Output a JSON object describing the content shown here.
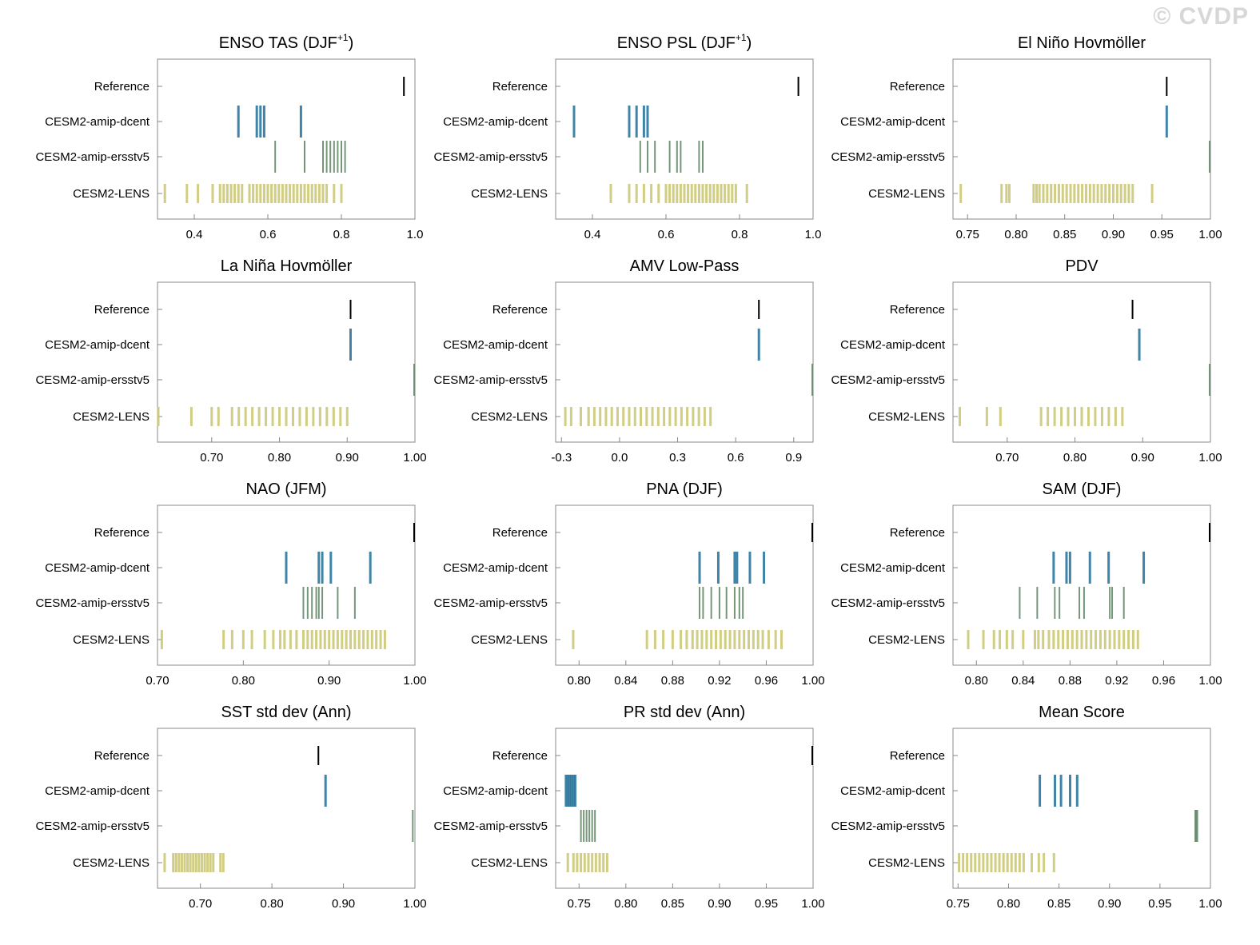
{
  "watermark": "© CVDP",
  "row_labels": [
    "Reference",
    "CESM2-amip-dcent",
    "CESM2-amip-ersstv5",
    "CESM2-LENS"
  ],
  "colors": {
    "Reference": "#000000",
    "CESM2-amip-dcent": "#1f6f98",
    "CESM2-amip-ersstv5": "#5e8463",
    "CESM2-LENS": "#c9c56e"
  },
  "chart_data": [
    {
      "type": "scatter",
      "title": "ENSO TAS (DJF",
      "title_sup": "+1",
      "title_end": ")",
      "xlim": [
        0.3,
        1.0
      ],
      "xticks": [
        0.4,
        0.6,
        0.8,
        1.0
      ],
      "xticklabels": [
        "0.4",
        "0.6",
        "0.8",
        "1.0"
      ],
      "series": [
        {
          "name": "Reference",
          "values": [
            0.97
          ]
        },
        {
          "name": "CESM2-amip-dcent",
          "values": [
            0.52,
            0.57,
            0.58,
            0.59,
            0.69
          ]
        },
        {
          "name": "CESM2-amip-ersstv5",
          "values": [
            0.62,
            0.7,
            0.75,
            0.76,
            0.77,
            0.78,
            0.79,
            0.8,
            0.81
          ]
        },
        {
          "name": "CESM2-LENS",
          "values": [
            0.32,
            0.38,
            0.41,
            0.45,
            0.47,
            0.48,
            0.49,
            0.5,
            0.51,
            0.52,
            0.53,
            0.55,
            0.56,
            0.57,
            0.58,
            0.59,
            0.6,
            0.61,
            0.62,
            0.63,
            0.64,
            0.65,
            0.66,
            0.67,
            0.68,
            0.69,
            0.7,
            0.71,
            0.72,
            0.73,
            0.74,
            0.75,
            0.76,
            0.78,
            0.8
          ]
        }
      ]
    },
    {
      "type": "scatter",
      "title": "ENSO PSL (DJF",
      "title_sup": "+1",
      "title_end": ")",
      "xlim": [
        0.3,
        1.0
      ],
      "xticks": [
        0.4,
        0.6,
        0.8,
        1.0
      ],
      "xticklabels": [
        "0.4",
        "0.6",
        "0.8",
        "1.0"
      ],
      "series": [
        {
          "name": "Reference",
          "values": [
            0.96
          ]
        },
        {
          "name": "CESM2-amip-dcent",
          "values": [
            0.35,
            0.5,
            0.52,
            0.54,
            0.55
          ]
        },
        {
          "name": "CESM2-amip-ersstv5",
          "values": [
            0.53,
            0.55,
            0.57,
            0.61,
            0.63,
            0.64,
            0.69,
            0.7
          ]
        },
        {
          "name": "CESM2-LENS",
          "values": [
            0.45,
            0.5,
            0.52,
            0.54,
            0.56,
            0.58,
            0.6,
            0.61,
            0.62,
            0.63,
            0.64,
            0.65,
            0.66,
            0.67,
            0.68,
            0.69,
            0.7,
            0.71,
            0.72,
            0.73,
            0.74,
            0.75,
            0.76,
            0.77,
            0.78,
            0.79,
            0.82
          ]
        }
      ]
    },
    {
      "type": "scatter",
      "title": "El Niño Hovmöller",
      "xlim": [
        0.735,
        1.0
      ],
      "xticks": [
        0.75,
        0.8,
        0.85,
        0.9,
        0.95,
        1.0
      ],
      "xticklabels": [
        "0.75",
        "0.80",
        "0.85",
        "0.90",
        "0.95",
        "1.00"
      ],
      "series": [
        {
          "name": "Reference",
          "values": [
            0.955
          ]
        },
        {
          "name": "CESM2-amip-dcent",
          "values": [
            0.955
          ]
        },
        {
          "name": "CESM2-amip-ersstv5",
          "values": [
            1.0
          ]
        },
        {
          "name": "CESM2-LENS",
          "values": [
            0.743,
            0.785,
            0.79,
            0.793,
            0.818,
            0.821,
            0.824,
            0.828,
            0.832,
            0.836,
            0.84,
            0.844,
            0.848,
            0.852,
            0.856,
            0.86,
            0.864,
            0.868,
            0.872,
            0.876,
            0.88,
            0.884,
            0.888,
            0.892,
            0.896,
            0.9,
            0.904,
            0.908,
            0.912,
            0.916,
            0.92,
            0.94
          ]
        }
      ]
    },
    {
      "type": "scatter",
      "title": "La Niña Hovmöller",
      "xlim": [
        0.62,
        1.0
      ],
      "xticks": [
        0.7,
        0.8,
        0.9,
        1.0
      ],
      "xticklabels": [
        "0.70",
        "0.80",
        "0.90",
        "1.00"
      ],
      "series": [
        {
          "name": "Reference",
          "values": [
            0.905
          ]
        },
        {
          "name": "CESM2-amip-dcent",
          "values": [
            0.905
          ]
        },
        {
          "name": "CESM2-amip-ersstv5",
          "values": [
            1.0
          ]
        },
        {
          "name": "CESM2-LENS",
          "values": [
            0.62,
            0.67,
            0.7,
            0.71,
            0.73,
            0.74,
            0.75,
            0.76,
            0.77,
            0.78,
            0.79,
            0.8,
            0.81,
            0.82,
            0.83,
            0.84,
            0.85,
            0.86,
            0.87,
            0.88,
            0.89,
            0.9
          ]
        }
      ]
    },
    {
      "type": "scatter",
      "title": "AMV Low-Pass",
      "xlim": [
        -0.33,
        1.0
      ],
      "xticks": [
        -0.3,
        0.0,
        0.3,
        0.6,
        0.9
      ],
      "xticklabels": [
        "-0.3",
        "0.0",
        "0.3",
        "0.6",
        "0.9"
      ],
      "series": [
        {
          "name": "Reference",
          "values": [
            0.72
          ]
        },
        {
          "name": "CESM2-amip-dcent",
          "values": [
            0.72
          ]
        },
        {
          "name": "CESM2-amip-ersstv5",
          "values": [
            1.0
          ]
        },
        {
          "name": "CESM2-LENS",
          "values": [
            -0.28,
            -0.25,
            -0.2,
            -0.16,
            -0.13,
            -0.1,
            -0.07,
            -0.04,
            -0.01,
            0.02,
            0.05,
            0.08,
            0.11,
            0.14,
            0.17,
            0.2,
            0.23,
            0.26,
            0.29,
            0.32,
            0.35,
            0.38,
            0.41,
            0.44,
            0.47
          ]
        }
      ]
    },
    {
      "type": "scatter",
      "title": "PDV",
      "xlim": [
        0.62,
        1.0
      ],
      "xticks": [
        0.7,
        0.8,
        0.9,
        1.0
      ],
      "xticklabels": [
        "0.70",
        "0.80",
        "0.90",
        "1.00"
      ],
      "series": [
        {
          "name": "Reference",
          "values": [
            0.885
          ]
        },
        {
          "name": "CESM2-amip-dcent",
          "values": [
            0.895
          ]
        },
        {
          "name": "CESM2-amip-ersstv5",
          "values": [
            1.0
          ]
        },
        {
          "name": "CESM2-LENS",
          "values": [
            0.63,
            0.67,
            0.69,
            0.75,
            0.76,
            0.77,
            0.78,
            0.79,
            0.8,
            0.81,
            0.82,
            0.83,
            0.84,
            0.85,
            0.86,
            0.87
          ]
        }
      ]
    },
    {
      "type": "scatter",
      "title": "NAO (JFM)",
      "xlim": [
        0.7,
        1.0
      ],
      "xticks": [
        0.7,
        0.8,
        0.9,
        1.0
      ],
      "xticklabels": [
        "0.70",
        "0.80",
        "0.90",
        "1.00"
      ],
      "series": [
        {
          "name": "Reference",
          "values": [
            1.0
          ]
        },
        {
          "name": "CESM2-amip-dcent",
          "values": [
            0.85,
            0.888,
            0.892,
            0.902,
            0.948
          ]
        },
        {
          "name": "CESM2-amip-ersstv5",
          "values": [
            0.87,
            0.875,
            0.88,
            0.885,
            0.888,
            0.892,
            0.91,
            0.93
          ]
        },
        {
          "name": "CESM2-LENS",
          "values": [
            0.705,
            0.777,
            0.787,
            0.8,
            0.81,
            0.825,
            0.835,
            0.843,
            0.848,
            0.855,
            0.862,
            0.87,
            0.875,
            0.88,
            0.885,
            0.89,
            0.895,
            0.9,
            0.905,
            0.91,
            0.915,
            0.92,
            0.925,
            0.93,
            0.935,
            0.94,
            0.945,
            0.95,
            0.955,
            0.96,
            0.965
          ]
        }
      ]
    },
    {
      "type": "scatter",
      "title": "PNA (DJF)",
      "xlim": [
        0.78,
        1.0
      ],
      "xticks": [
        0.8,
        0.84,
        0.88,
        0.92,
        0.96,
        1.0
      ],
      "xticklabels": [
        "0.80",
        "0.84",
        "0.88",
        "0.92",
        "0.96",
        "1.00"
      ],
      "series": [
        {
          "name": "Reference",
          "values": [
            1.0
          ]
        },
        {
          "name": "CESM2-amip-dcent",
          "values": [
            0.903,
            0.919,
            0.933,
            0.935,
            0.946,
            0.958
          ]
        },
        {
          "name": "CESM2-amip-ersstv5",
          "values": [
            0.903,
            0.906,
            0.913,
            0.92,
            0.926,
            0.933,
            0.937,
            0.94
          ]
        },
        {
          "name": "CESM2-LENS",
          "values": [
            0.795,
            0.858,
            0.865,
            0.872,
            0.88,
            0.887,
            0.892,
            0.897,
            0.901,
            0.905,
            0.909,
            0.913,
            0.917,
            0.921,
            0.925,
            0.929,
            0.933,
            0.937,
            0.941,
            0.945,
            0.949,
            0.953,
            0.957,
            0.962,
            0.968,
            0.973
          ]
        }
      ]
    },
    {
      "type": "scatter",
      "title": "SAM (DJF)",
      "xlim": [
        0.78,
        1.0
      ],
      "xticks": [
        0.8,
        0.84,
        0.88,
        0.92,
        0.96,
        1.0
      ],
      "xticklabels": [
        "0.80",
        "0.84",
        "0.88",
        "0.92",
        "0.96",
        "1.00"
      ],
      "series": [
        {
          "name": "Reference",
          "values": [
            1.0
          ]
        },
        {
          "name": "CESM2-amip-dcent",
          "values": [
            0.866,
            0.877,
            0.88,
            0.897,
            0.913,
            0.943
          ]
        },
        {
          "name": "CESM2-amip-ersstv5",
          "values": [
            0.837,
            0.852,
            0.867,
            0.871,
            0.888,
            0.892,
            0.914,
            0.916,
            0.926
          ]
        },
        {
          "name": "CESM2-LENS",
          "values": [
            0.793,
            0.806,
            0.815,
            0.82,
            0.826,
            0.831,
            0.84,
            0.85,
            0.853,
            0.857,
            0.862,
            0.866,
            0.87,
            0.874,
            0.878,
            0.882,
            0.886,
            0.89,
            0.894,
            0.898,
            0.902,
            0.906,
            0.91,
            0.914,
            0.918,
            0.922,
            0.926,
            0.93,
            0.934,
            0.938
          ]
        }
      ]
    },
    {
      "type": "scatter",
      "title": "SST std dev (Ann)",
      "xlim": [
        0.64,
        1.0
      ],
      "xticks": [
        0.7,
        0.8,
        0.9,
        1.0
      ],
      "xticklabels": [
        "0.70",
        "0.80",
        "0.90",
        "1.00"
      ],
      "series": [
        {
          "name": "Reference",
          "values": [
            0.865
          ]
        },
        {
          "name": "CESM2-amip-dcent",
          "values": [
            0.875
          ]
        },
        {
          "name": "CESM2-amip-ersstv5",
          "values": [
            0.997
          ]
        },
        {
          "name": "CESM2-LENS",
          "values": [
            0.65,
            0.662,
            0.666,
            0.67,
            0.674,
            0.678,
            0.682,
            0.686,
            0.69,
            0.694,
            0.698,
            0.702,
            0.706,
            0.71,
            0.714,
            0.718,
            0.728,
            0.732
          ]
        }
      ]
    },
    {
      "type": "scatter",
      "title": "PR std dev (Ann)",
      "xlim": [
        0.725,
        1.0
      ],
      "xticks": [
        0.75,
        0.8,
        0.85,
        0.9,
        0.95,
        1.0
      ],
      "xticklabels": [
        "0.75",
        "0.80",
        "0.85",
        "0.90",
        "0.95",
        "1.00"
      ],
      "series": [
        {
          "name": "Reference",
          "values": [
            1.0
          ]
        },
        {
          "name": "CESM2-amip-dcent",
          "values": [
            0.736,
            0.738,
            0.74,
            0.742,
            0.744,
            0.746
          ]
        },
        {
          "name": "CESM2-amip-ersstv5",
          "values": [
            0.752,
            0.755,
            0.758,
            0.761,
            0.764,
            0.767
          ]
        },
        {
          "name": "CESM2-LENS",
          "values": [
            0.738,
            0.744,
            0.748,
            0.752,
            0.756,
            0.76,
            0.764,
            0.768,
            0.772,
            0.776,
            0.78
          ]
        }
      ]
    },
    {
      "type": "scatter",
      "title": "Mean Score",
      "xlim": [
        0.745,
        1.0
      ],
      "xticks": [
        0.75,
        0.8,
        0.85,
        0.9,
        0.95,
        1.0
      ],
      "xticklabels": [
        "0.75",
        "0.80",
        "0.85",
        "0.90",
        "0.95",
        "1.00"
      ],
      "series": [
        {
          "name": "Reference",
          "values": []
        },
        {
          "name": "CESM2-amip-dcent",
          "values": [
            0.831,
            0.846,
            0.852,
            0.861,
            0.868
          ]
        },
        {
          "name": "CESM2-amip-ersstv5",
          "values": [
            0.985,
            0.986,
            0.987
          ]
        },
        {
          "name": "CESM2-LENS",
          "values": [
            0.751,
            0.755,
            0.759,
            0.763,
            0.767,
            0.771,
            0.775,
            0.779,
            0.783,
            0.787,
            0.791,
            0.795,
            0.799,
            0.803,
            0.807,
            0.811,
            0.815,
            0.823,
            0.83,
            0.835,
            0.845
          ]
        }
      ]
    }
  ]
}
